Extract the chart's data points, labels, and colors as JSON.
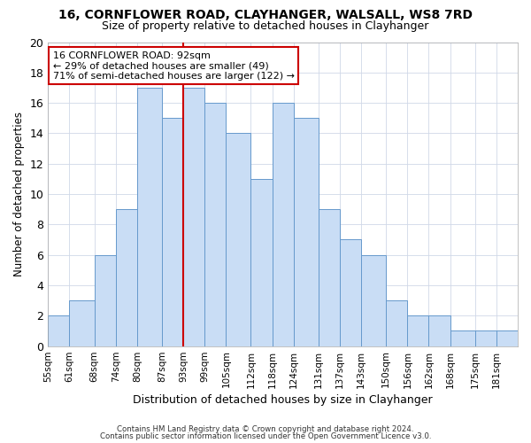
{
  "title": "16, CORNFLOWER ROAD, CLAYHANGER, WALSALL, WS8 7RD",
  "subtitle": "Size of property relative to detached houses in Clayhanger",
  "xlabel": "Distribution of detached houses by size in Clayhanger",
  "ylabel": "Number of detached properties",
  "bar_color": "#c9ddf5",
  "bar_edge_color": "#6699cc",
  "annotation_title": "16 CORNFLOWER ROAD: 92sqm",
  "annotation_line1": "← 29% of detached houses are smaller (49)",
  "annotation_line2": "71% of semi-detached houses are larger (122) →",
  "red_line_x": 93,
  "bins": [
    55,
    61,
    68,
    74,
    80,
    87,
    93,
    99,
    105,
    112,
    118,
    124,
    131,
    137,
    143,
    150,
    156,
    162,
    168,
    175,
    181,
    187
  ],
  "counts": [
    2,
    3,
    6,
    9,
    17,
    15,
    17,
    16,
    14,
    11,
    16,
    15,
    9,
    7,
    6,
    3,
    2,
    2,
    1,
    1,
    1
  ],
  "ylim": [
    0,
    20
  ],
  "yticks": [
    0,
    2,
    4,
    6,
    8,
    10,
    12,
    14,
    16,
    18,
    20
  ],
  "xtick_labels": [
    "55sqm",
    "61sqm",
    "68sqm",
    "74sqm",
    "80sqm",
    "87sqm",
    "93sqm",
    "99sqm",
    "105sqm",
    "112sqm",
    "118sqm",
    "124sqm",
    "131sqm",
    "137sqm",
    "143sqm",
    "150sqm",
    "156sqm",
    "162sqm",
    "168sqm",
    "175sqm",
    "181sqm"
  ],
  "footer_line1": "Contains HM Land Registry data © Crown copyright and database right 2024.",
  "footer_line2": "Contains public sector information licensed under the Open Government Licence v3.0.",
  "background_color": "#ffffff",
  "annotation_box_color": "#ffffff",
  "annotation_box_edge": "#cc0000",
  "title_fontsize": 10,
  "subtitle_fontsize": 9
}
